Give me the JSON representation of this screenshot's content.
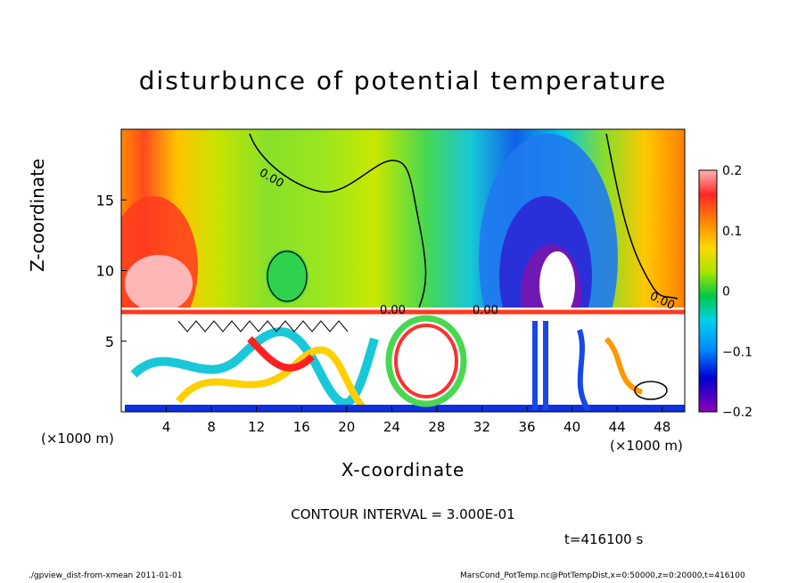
{
  "chart_data": {
    "type": "heatmap",
    "title": "disturbunce of potential temperature",
    "xlabel": "X-coordinate",
    "ylabel": "Z-coordinate",
    "x_unit_label": "(×1000 m)",
    "x_ticks": [
      4,
      8,
      12,
      16,
      20,
      24,
      28,
      32,
      36,
      40,
      44,
      48
    ],
    "y_ticks": [
      5,
      10,
      15
    ],
    "xlim": [
      0,
      50
    ],
    "ylim": [
      0,
      20
    ],
    "colorbar": {
      "range": [
        -0.2,
        0.2
      ],
      "tick_labels": [
        "0.2",
        "0.1",
        "0",
        "−0.1",
        "−0.2"
      ],
      "tick_values": [
        0.2,
        0.1,
        0,
        -0.1,
        -0.2
      ]
    },
    "contour_labels": [
      "0.00",
      "0.00",
      "0.00",
      "0.00"
    ],
    "contour_interval_text": "CONTOUR INTERVAL = 3.000E-01",
    "time_text": "t=416100 s"
  },
  "footer": {
    "left": "./gpview_dist-from-xmean  2011-01-01",
    "right": "MarsCond_PotTemp.nc@PotTempDist,x=0:50000,z=0:20000,t=416100"
  }
}
